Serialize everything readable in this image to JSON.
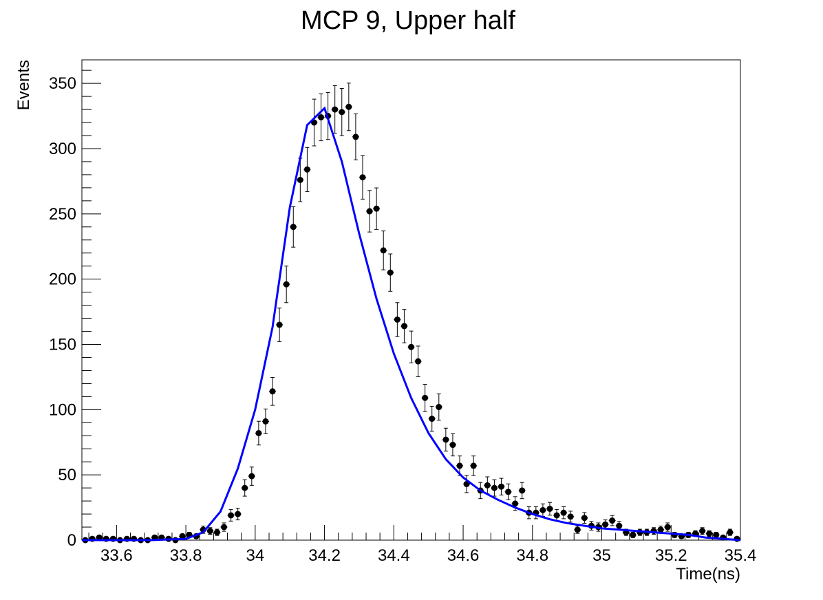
{
  "chart_data": {
    "type": "scatter",
    "title": "MCP 9, Upper half",
    "xlabel": "Time(ns)",
    "ylabel": "Events",
    "xlim": [
      33.5,
      35.4
    ],
    "ylim": [
      0,
      368
    ],
    "x_ticks": [
      33.6,
      33.8,
      34,
      34.2,
      34.4,
      34.6,
      34.8,
      35,
      35.2,
      35.4
    ],
    "x_tick_labels": [
      "33.6",
      "33.8",
      "34",
      "34.2",
      "34.4",
      "34.6",
      "34.8",
      "35",
      "35.2",
      "35.4"
    ],
    "y_ticks": [
      0,
      50,
      100,
      150,
      200,
      250,
      300,
      350
    ],
    "y_tick_labels": [
      "0",
      "50",
      "100",
      "150",
      "200",
      "250",
      "300",
      "350"
    ],
    "grid": false,
    "marker_color": "#000000",
    "fit_color": "#0000ff",
    "series": [
      {
        "type": "histogram-points",
        "bin_width": 0.02,
        "x": [
          33.51,
          33.53,
          33.55,
          33.57,
          33.59,
          33.61,
          33.63,
          33.65,
          33.67,
          33.69,
          33.71,
          33.73,
          33.75,
          33.77,
          33.79,
          33.81,
          33.83,
          33.85,
          33.87,
          33.89,
          33.91,
          33.93,
          33.95,
          33.97,
          33.99,
          34.01,
          34.03,
          34.05,
          34.07,
          34.09,
          34.11,
          34.13,
          34.15,
          34.17,
          34.19,
          34.21,
          34.23,
          34.25,
          34.27,
          34.29,
          34.31,
          34.33,
          34.35,
          34.37,
          34.39,
          34.41,
          34.43,
          34.45,
          34.47,
          34.49,
          34.51,
          34.53,
          34.55,
          34.57,
          34.59,
          34.61,
          34.63,
          34.65,
          34.67,
          34.69,
          34.71,
          34.73,
          34.75,
          34.77,
          34.79,
          34.81,
          34.83,
          34.85,
          34.87,
          34.89,
          34.91,
          34.93,
          34.95,
          34.97,
          34.99,
          35.01,
          35.03,
          35.05,
          35.07,
          35.09,
          35.11,
          35.13,
          35.15,
          35.17,
          35.19,
          35.21,
          35.23,
          35.25,
          35.27,
          35.29,
          35.31,
          35.33,
          35.35,
          35.37,
          35.39
        ],
        "y": [
          0,
          1,
          2,
          1,
          1,
          0,
          1,
          1,
          0,
          0,
          2,
          2,
          1,
          0,
          3,
          4,
          3,
          8,
          7,
          6,
          10,
          19,
          20,
          40,
          49,
          82,
          91,
          114,
          165,
          196,
          240,
          276,
          284,
          320,
          324,
          325,
          330,
          328,
          332,
          309,
          278,
          252,
          254,
          222,
          205,
          169,
          164,
          148,
          137,
          109,
          93,
          102,
          77,
          73,
          57,
          43,
          57,
          38,
          42,
          40,
          41,
          37,
          28,
          38,
          21,
          21,
          23,
          24,
          19,
          21,
          18,
          8,
          17,
          11,
          10,
          12,
          15,
          11,
          6,
          4,
          6,
          6,
          7,
          8,
          10,
          4,
          3,
          4,
          5,
          7,
          5,
          4,
          2,
          6,
          1
        ],
        "errors": [
          0,
          1,
          1.4,
          1,
          1,
          0,
          1,
          1,
          0,
          0,
          1.4,
          1.4,
          1,
          0,
          1.7,
          2,
          1.7,
          2.8,
          2.6,
          2.4,
          3.2,
          4.4,
          4.5,
          6.3,
          7,
          9.1,
          9.5,
          10.7,
          12.8,
          14,
          15.5,
          16.6,
          16.9,
          17.9,
          18,
          18,
          18.2,
          18.1,
          18.2,
          17.6,
          16.7,
          15.9,
          15.9,
          14.9,
          14.3,
          13,
          12.8,
          12.2,
          11.7,
          10.4,
          9.6,
          10.1,
          8.8,
          8.5,
          7.5,
          6.6,
          7.5,
          6.2,
          6.5,
          6.3,
          6.4,
          6.1,
          5.3,
          6.2,
          4.6,
          4.6,
          4.8,
          4.9,
          4.4,
          4.6,
          4.2,
          2.8,
          4.1,
          3.3,
          3.2,
          3.5,
          3.9,
          3.3,
          2.4,
          2,
          2.4,
          2.4,
          2.6,
          2.8,
          3.2,
          2,
          1.7,
          2,
          2.2,
          2.6,
          2.2,
          2,
          1.4,
          2.4,
          1
        ]
      },
      {
        "type": "fit-curve",
        "x": [
          33.5,
          33.7,
          33.8,
          33.85,
          33.9,
          33.95,
          34,
          34.05,
          34.1,
          34.15,
          34.2,
          34.25,
          34.3,
          34.35,
          34.4,
          34.45,
          34.5,
          34.55,
          34.6,
          34.65,
          34.7,
          34.75,
          34.8,
          34.85,
          34.9,
          34.95,
          35,
          35.05,
          35.1,
          35.15,
          35.2,
          35.25,
          35.3,
          35.35,
          35.4
        ],
        "y": [
          0,
          0,
          1,
          6,
          22,
          55,
          100,
          163,
          255,
          318,
          331,
          290,
          235,
          185,
          143,
          109,
          82,
          62,
          48,
          38,
          31,
          25,
          20,
          16,
          13,
          11,
          9,
          8,
          7,
          6,
          5,
          4,
          2,
          1,
          0
        ]
      }
    ]
  }
}
